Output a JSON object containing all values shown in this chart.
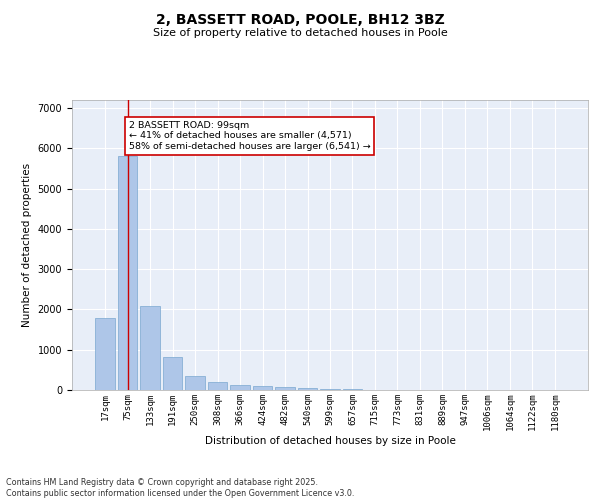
{
  "title": "2, BASSETT ROAD, POOLE, BH12 3BZ",
  "subtitle": "Size of property relative to detached houses in Poole",
  "xlabel": "Distribution of detached houses by size in Poole",
  "ylabel": "Number of detached properties",
  "categories": [
    "17sqm",
    "75sqm",
    "133sqm",
    "191sqm",
    "250sqm",
    "308sqm",
    "366sqm",
    "424sqm",
    "482sqm",
    "540sqm",
    "599sqm",
    "657sqm",
    "715sqm",
    "773sqm",
    "831sqm",
    "889sqm",
    "947sqm",
    "1006sqm",
    "1064sqm",
    "1122sqm",
    "1180sqm"
  ],
  "values": [
    1780,
    5820,
    2090,
    820,
    360,
    210,
    120,
    90,
    80,
    50,
    30,
    20,
    10,
    5,
    5,
    5,
    3,
    3,
    2,
    2,
    2
  ],
  "bar_color": "#aec6e8",
  "bar_edge_color": "#7aa8d0",
  "background_color": "#e8eef8",
  "grid_color": "#ffffff",
  "vline_x": 1,
  "vline_color": "#cc0000",
  "annotation_text": "2 BASSETT ROAD: 99sqm\n← 41% of detached houses are smaller (4,571)\n58% of semi-detached houses are larger (6,541) →",
  "annotation_box_color": "#cc0000",
  "ylim": [
    0,
    7200
  ],
  "yticks": [
    0,
    1000,
    2000,
    3000,
    4000,
    5000,
    6000,
    7000
  ],
  "footer_line1": "Contains HM Land Registry data © Crown copyright and database right 2025.",
  "footer_line2": "Contains public sector information licensed under the Open Government Licence v3.0."
}
